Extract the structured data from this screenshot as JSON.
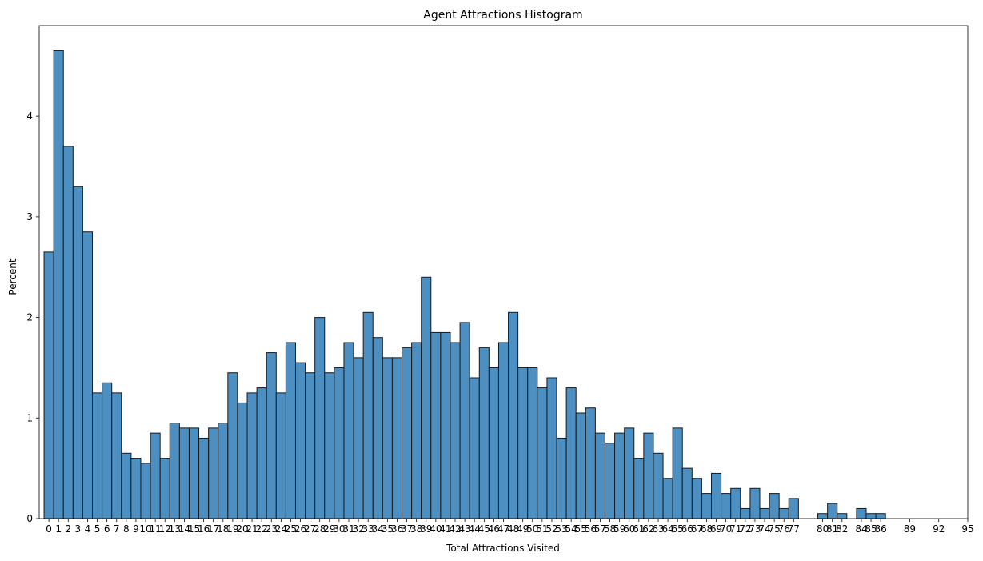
{
  "chart_data": {
    "type": "bar",
    "title": "Agent Attractions Histogram",
    "xlabel": "Total Attractions Visited",
    "ylabel": "Percent",
    "ylim": [
      0,
      4.9
    ],
    "xlim": [
      -1.0,
      95
    ],
    "yticks": [
      "0",
      "1",
      "2",
      "3",
      "4"
    ],
    "xticks": [
      "0",
      "1",
      "2",
      "3",
      "4",
      "5",
      "6",
      "7",
      "8",
      "9",
      "10",
      "11",
      "12",
      "13",
      "14",
      "15",
      "16",
      "17",
      "18",
      "19",
      "20",
      "21",
      "22",
      "23",
      "24",
      "25",
      "26",
      "27",
      "28",
      "29",
      "30",
      "31",
      "32",
      "33",
      "34",
      "35",
      "36",
      "37",
      "38",
      "39",
      "40",
      "41",
      "42",
      "43",
      "44",
      "45",
      "46",
      "47",
      "48",
      "49",
      "50",
      "51",
      "52",
      "53",
      "54",
      "55",
      "56",
      "57",
      "58",
      "59",
      "60",
      "61",
      "62",
      "63",
      "64",
      "65",
      "66",
      "67",
      "68",
      "69",
      "70",
      "71",
      "72",
      "73",
      "74",
      "75",
      "76",
      "77",
      "80",
      "81",
      "82",
      "84",
      "85",
      "86",
      "89",
      "92",
      "95"
    ],
    "bar_color": "#4c8fc0",
    "edge_color": "#1a1a1a",
    "grid": false,
    "bars": [
      {
        "x": 0,
        "y": 2.65
      },
      {
        "x": 1,
        "y": 4.65
      },
      {
        "x": 2,
        "y": 3.7
      },
      {
        "x": 3,
        "y": 3.3
      },
      {
        "x": 4,
        "y": 2.85
      },
      {
        "x": 5,
        "y": 1.25
      },
      {
        "x": 6,
        "y": 1.35
      },
      {
        "x": 7,
        "y": 1.25
      },
      {
        "x": 8,
        "y": 0.65
      },
      {
        "x": 9,
        "y": 0.6
      },
      {
        "x": 10,
        "y": 0.55
      },
      {
        "x": 11,
        "y": 0.85
      },
      {
        "x": 12,
        "y": 0.6
      },
      {
        "x": 13,
        "y": 0.95
      },
      {
        "x": 14,
        "y": 0.9
      },
      {
        "x": 15,
        "y": 0.9
      },
      {
        "x": 16,
        "y": 0.8
      },
      {
        "x": 17,
        "y": 0.9
      },
      {
        "x": 18,
        "y": 0.95
      },
      {
        "x": 19,
        "y": 1.45
      },
      {
        "x": 20,
        "y": 1.15
      },
      {
        "x": 21,
        "y": 1.25
      },
      {
        "x": 22,
        "y": 1.3
      },
      {
        "x": 23,
        "y": 1.65
      },
      {
        "x": 24,
        "y": 1.25
      },
      {
        "x": 25,
        "y": 1.75
      },
      {
        "x": 26,
        "y": 1.55
      },
      {
        "x": 27,
        "y": 1.45
      },
      {
        "x": 28,
        "y": 2.0
      },
      {
        "x": 29,
        "y": 1.45
      },
      {
        "x": 30,
        "y": 1.5
      },
      {
        "x": 31,
        "y": 1.75
      },
      {
        "x": 32,
        "y": 1.6
      },
      {
        "x": 33,
        "y": 2.05
      },
      {
        "x": 34,
        "y": 1.8
      },
      {
        "x": 35,
        "y": 1.6
      },
      {
        "x": 36,
        "y": 1.6
      },
      {
        "x": 37,
        "y": 1.7
      },
      {
        "x": 38,
        "y": 1.75
      },
      {
        "x": 39,
        "y": 2.4
      },
      {
        "x": 40,
        "y": 1.85
      },
      {
        "x": 41,
        "y": 1.85
      },
      {
        "x": 42,
        "y": 1.75
      },
      {
        "x": 43,
        "y": 1.95
      },
      {
        "x": 44,
        "y": 1.4
      },
      {
        "x": 45,
        "y": 1.7
      },
      {
        "x": 46,
        "y": 1.5
      },
      {
        "x": 47,
        "y": 1.75
      },
      {
        "x": 48,
        "y": 2.05
      },
      {
        "x": 49,
        "y": 1.5
      },
      {
        "x": 50,
        "y": 1.5
      },
      {
        "x": 51,
        "y": 1.3
      },
      {
        "x": 52,
        "y": 1.4
      },
      {
        "x": 53,
        "y": 0.8
      },
      {
        "x": 54,
        "y": 1.3
      },
      {
        "x": 55,
        "y": 1.05
      },
      {
        "x": 56,
        "y": 1.1
      },
      {
        "x": 57,
        "y": 0.85
      },
      {
        "x": 58,
        "y": 0.75
      },
      {
        "x": 59,
        "y": 0.85
      },
      {
        "x": 60,
        "y": 0.9
      },
      {
        "x": 61,
        "y": 0.6
      },
      {
        "x": 62,
        "y": 0.85
      },
      {
        "x": 63,
        "y": 0.65
      },
      {
        "x": 64,
        "y": 0.4
      },
      {
        "x": 65,
        "y": 0.9
      },
      {
        "x": 66,
        "y": 0.5
      },
      {
        "x": 67,
        "y": 0.4
      },
      {
        "x": 68,
        "y": 0.25
      },
      {
        "x": 69,
        "y": 0.45
      },
      {
        "x": 70,
        "y": 0.25
      },
      {
        "x": 71,
        "y": 0.3
      },
      {
        "x": 72,
        "y": 0.1
      },
      {
        "x": 73,
        "y": 0.3
      },
      {
        "x": 74,
        "y": 0.1
      },
      {
        "x": 75,
        "y": 0.25
      },
      {
        "x": 76,
        "y": 0.1
      },
      {
        "x": 77,
        "y": 0.2
      },
      {
        "x": 80,
        "y": 0.05
      },
      {
        "x": 81,
        "y": 0.15
      },
      {
        "x": 82,
        "y": 0.05
      },
      {
        "x": 84,
        "y": 0.1
      },
      {
        "x": 85,
        "y": 0.05
      },
      {
        "x": 86,
        "y": 0.05
      }
    ]
  }
}
